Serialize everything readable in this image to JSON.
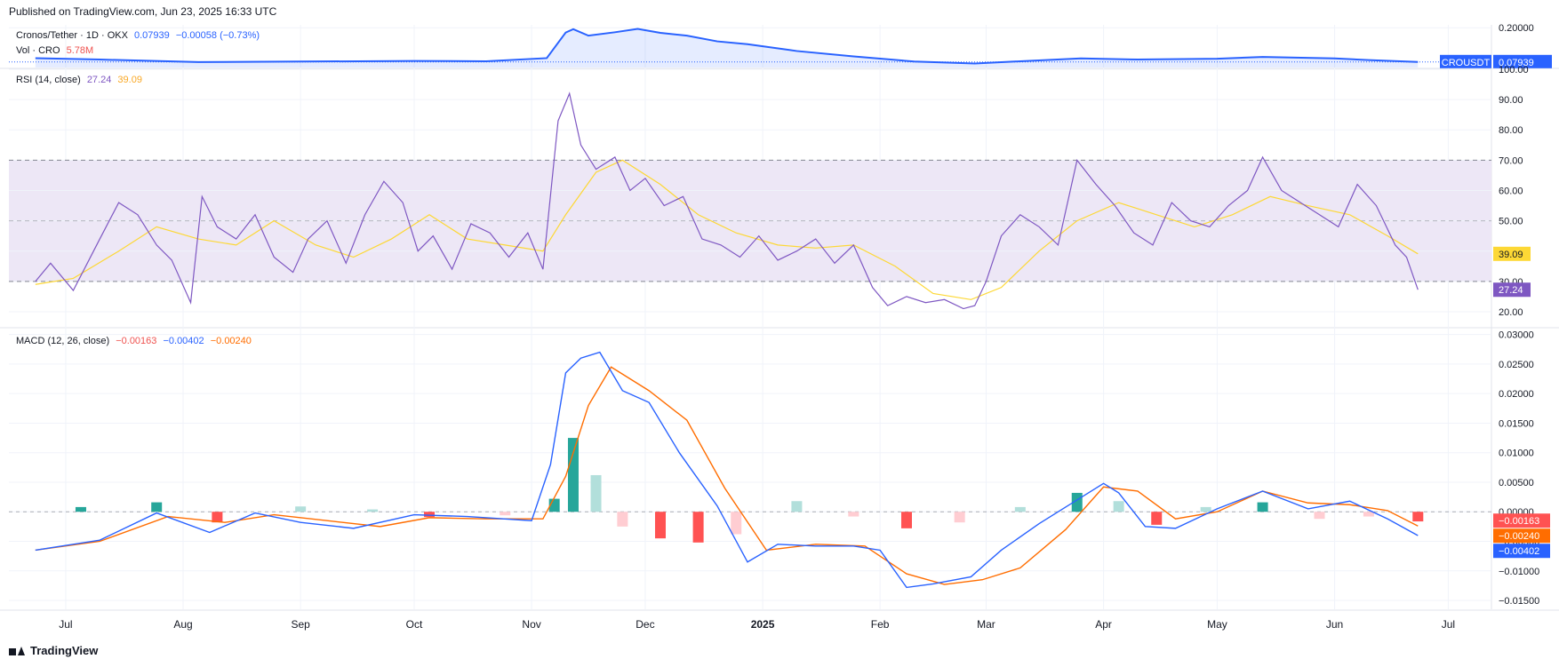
{
  "header": {
    "published": "Published on TradingView.com, Jun 23, 2025 16:33 UTC"
  },
  "footer": {
    "brand": "TradingView"
  },
  "colors": {
    "price": "#2962ff",
    "rsi": "#7e57c2",
    "rsi_ma": "#fdd835",
    "macd": "#2962ff",
    "signal": "#ff6d00",
    "hist_pos_strong": "#26a69a",
    "hist_pos_weak": "#b2dfdb",
    "hist_neg_strong": "#ff5252",
    "hist_neg_weak": "#ffcdd2",
    "rsi_band": "#ede7f6",
    "grid": "#f0f3fa"
  },
  "legend": {
    "symbol": "Cronos/Tether · 1D · OKX",
    "last": "0.07939",
    "change": "−0.00058 (−0.73%)",
    "vol_label": "Vol · CRO",
    "vol_value": "5.78M",
    "rsi_label": "RSI (14, close)",
    "rsi_value": "27.24",
    "rsi_ma_value": "39.09",
    "macd_label": "MACD (12, 26, close)",
    "macd_hist": "−0.00163",
    "macd_line": "−0.00402",
    "macd_signal": "−0.00240"
  },
  "badges": {
    "symbol": "CROUSDT",
    "price": "0.07939",
    "rsi": "27.24",
    "rsi_ma": "39.09",
    "hist": "−0.00163",
    "signal": "−0.00240",
    "macd": "−0.00402"
  },
  "chart_data": [
    {
      "type": "line",
      "panel": "price",
      "title": "Cronos/Tether · 1D · OKX",
      "yticks": [
        "0.20000"
      ],
      "ylim": [
        0.06,
        0.21
      ],
      "xlim": [
        "2025-06-23",
        "2025-06-23"
      ],
      "series": [
        {
          "name": "CROUSDT",
          "x": [
            "2024-06-23",
            "2024-07-10",
            "2024-08-05",
            "2024-09-01",
            "2024-10-01",
            "2024-10-20",
            "2024-11-05",
            "2024-11-10",
            "2024-11-12",
            "2024-11-16",
            "2024-11-23",
            "2024-11-29",
            "2024-12-05",
            "2024-12-12",
            "2024-12-20",
            "2024-12-28",
            "2025-01-10",
            "2025-01-25",
            "2025-02-10",
            "2025-02-26",
            "2025-03-10",
            "2025-03-26",
            "2025-04-10",
            "2025-05-01",
            "2025-05-13",
            "2025-06-01",
            "2025-06-10",
            "2025-06-23"
          ],
          "values": [
            0.093,
            0.088,
            0.079,
            0.081,
            0.083,
            0.082,
            0.093,
            0.183,
            0.195,
            0.172,
            0.184,
            0.196,
            0.182,
            0.172,
            0.152,
            0.142,
            0.118,
            0.099,
            0.081,
            0.074,
            0.082,
            0.092,
            0.088,
            0.091,
            0.097,
            0.092,
            0.086,
            0.0794
          ]
        }
      ]
    },
    {
      "type": "line",
      "panel": "rsi",
      "title": "RSI (14, close)",
      "yticks": [
        20,
        30,
        40,
        50,
        60,
        70,
        80,
        90,
        100
      ],
      "ylim": [
        15,
        100
      ],
      "band": [
        30,
        70
      ],
      "levels": [
        30,
        50,
        70
      ],
      "series": [
        {
          "name": "RSI",
          "x": [
            "2024-06-23",
            "2024-06-27",
            "2024-07-03",
            "2024-07-10",
            "2024-07-15",
            "2024-07-20",
            "2024-07-25",
            "2024-07-29",
            "2024-08-03",
            "2024-08-06",
            "2024-08-10",
            "2024-08-15",
            "2024-08-20",
            "2024-08-25",
            "2024-08-30",
            "2024-09-03",
            "2024-09-08",
            "2024-09-13",
            "2024-09-18",
            "2024-09-23",
            "2024-09-28",
            "2024-10-02",
            "2024-10-06",
            "2024-10-11",
            "2024-10-16",
            "2024-10-21",
            "2024-10-26",
            "2024-10-31",
            "2024-11-04",
            "2024-11-08",
            "2024-11-11",
            "2024-11-14",
            "2024-11-18",
            "2024-11-23",
            "2024-11-27",
            "2024-12-01",
            "2024-12-06",
            "2024-12-11",
            "2024-12-16",
            "2024-12-21",
            "2024-12-26",
            "2024-12-31",
            "2025-01-05",
            "2025-01-10",
            "2025-01-15",
            "2025-01-20",
            "2025-01-25",
            "2025-01-30",
            "2025-02-03",
            "2025-02-08",
            "2025-02-13",
            "2025-02-18",
            "2025-02-23",
            "2025-02-26",
            "2025-03-01",
            "2025-03-05",
            "2025-03-10",
            "2025-03-15",
            "2025-03-20",
            "2025-03-25",
            "2025-03-30",
            "2025-04-04",
            "2025-04-09",
            "2025-04-14",
            "2025-04-19",
            "2025-04-24",
            "2025-04-29",
            "2025-05-04",
            "2025-05-09",
            "2025-05-13",
            "2025-05-18",
            "2025-05-23",
            "2025-05-28",
            "2025-06-02",
            "2025-06-07",
            "2025-06-12",
            "2025-06-17",
            "2025-06-20",
            "2025-06-23"
          ],
          "values": [
            30,
            36,
            27,
            44,
            56,
            52,
            42,
            37,
            23,
            58,
            48,
            44,
            52,
            38,
            33,
            44,
            50,
            36,
            52,
            63,
            56,
            40,
            45,
            34,
            49,
            46,
            38,
            46,
            34,
            83,
            92,
            75,
            67,
            71,
            60,
            64,
            55,
            58,
            44,
            42,
            38,
            45,
            37,
            40,
            44,
            36,
            42,
            28,
            22,
            25,
            23,
            24,
            21,
            22,
            30,
            45,
            52,
            48,
            42,
            70,
            62,
            55,
            46,
            42,
            56,
            50,
            48,
            55,
            60,
            71,
            60,
            56,
            52,
            48,
            62,
            55,
            42,
            38,
            27.24
          ]
        },
        {
          "name": "RSI MA",
          "x": [
            "2024-06-23",
            "2024-07-03",
            "2024-07-15",
            "2024-07-25",
            "2024-08-05",
            "2024-08-15",
            "2024-08-25",
            "2024-09-05",
            "2024-09-15",
            "2024-09-25",
            "2024-10-05",
            "2024-10-15",
            "2024-10-25",
            "2024-11-04",
            "2024-11-10",
            "2024-11-18",
            "2024-11-25",
            "2024-12-05",
            "2024-12-15",
            "2024-12-25",
            "2025-01-05",
            "2025-01-15",
            "2025-01-25",
            "2025-02-05",
            "2025-02-15",
            "2025-02-25",
            "2025-03-05",
            "2025-03-15",
            "2025-03-25",
            "2025-04-05",
            "2025-04-15",
            "2025-04-25",
            "2025-05-05",
            "2025-05-15",
            "2025-05-25",
            "2025-06-05",
            "2025-06-15",
            "2025-06-23"
          ],
          "values": [
            29,
            31,
            40,
            48,
            44,
            42,
            50,
            42,
            38,
            44,
            52,
            44,
            42,
            40,
            52,
            66,
            70,
            62,
            52,
            46,
            42,
            41,
            42,
            35,
            26,
            24,
            28,
            40,
            50,
            56,
            52,
            48,
            52,
            58,
            55,
            52,
            45,
            39.09
          ]
        }
      ]
    },
    {
      "type": "line",
      "panel": "macd",
      "title": "MACD (12, 26, close)",
      "yticks": [
        -0.015,
        -0.01,
        -0.005,
        0,
        0.005,
        0.01,
        0.015,
        0.02,
        0.025,
        0.03
      ],
      "ylim": [
        -0.0165,
        0.031
      ],
      "series": [
        {
          "name": "MACD",
          "x": [
            "2024-06-23",
            "2024-07-10",
            "2024-07-25",
            "2024-08-08",
            "2024-08-20",
            "2024-09-01",
            "2024-09-15",
            "2024-10-01",
            "2024-10-15",
            "2024-11-01",
            "2024-11-06",
            "2024-11-10",
            "2024-11-14",
            "2024-11-19",
            "2024-11-25",
            "2024-12-02",
            "2024-12-10",
            "2024-12-20",
            "2024-12-28",
            "2025-01-05",
            "2025-01-15",
            "2025-01-25",
            "2025-02-01",
            "2025-02-08",
            "2025-02-15",
            "2025-02-25",
            "2025-03-05",
            "2025-03-15",
            "2025-03-25",
            "2025-04-01",
            "2025-04-05",
            "2025-04-12",
            "2025-04-20",
            "2025-05-01",
            "2025-05-13",
            "2025-05-25",
            "2025-06-05",
            "2025-06-15",
            "2025-06-23"
          ],
          "values": [
            -0.0065,
            -0.0048,
            -0.0002,
            -0.0035,
            -0.0002,
            -0.0018,
            -0.0028,
            -0.0005,
            -0.0008,
            -0.0015,
            0.008,
            0.0235,
            0.026,
            0.027,
            0.0205,
            0.0185,
            0.01,
            0.001,
            -0.0085,
            -0.0055,
            -0.0058,
            -0.0058,
            -0.0065,
            -0.0128,
            -0.0122,
            -0.011,
            -0.0065,
            -0.002,
            0.002,
            0.0048,
            0.0032,
            -0.0025,
            -0.0028,
            0.0005,
            0.0035,
            0.0005,
            0.0018,
            -0.0012,
            -0.00402
          ]
        },
        {
          "name": "Signal",
          "x": [
            "2024-06-23",
            "2024-07-10",
            "2024-07-28",
            "2024-08-12",
            "2024-08-25",
            "2024-09-08",
            "2024-09-22",
            "2024-10-05",
            "2024-10-20",
            "2024-11-04",
            "2024-11-10",
            "2024-11-16",
            "2024-11-22",
            "2024-12-02",
            "2024-12-12",
            "2024-12-22",
            "2025-01-02",
            "2025-01-15",
            "2025-01-28",
            "2025-02-08",
            "2025-02-18",
            "2025-02-28",
            "2025-03-10",
            "2025-03-22",
            "2025-04-01",
            "2025-04-10",
            "2025-04-20",
            "2025-05-01",
            "2025-05-13",
            "2025-05-25",
            "2025-06-05",
            "2025-06-15",
            "2025-06-23"
          ],
          "values": [
            -0.0065,
            -0.005,
            -0.0008,
            -0.0018,
            -0.0005,
            -0.0015,
            -0.0025,
            -0.001,
            -0.0012,
            -0.0012,
            0.006,
            0.018,
            0.0245,
            0.0205,
            0.0155,
            0.004,
            -0.0065,
            -0.0055,
            -0.0058,
            -0.0105,
            -0.0123,
            -0.0115,
            -0.0095,
            -0.003,
            0.0042,
            0.0035,
            -0.0012,
            0,
            0.0035,
            0.0015,
            0.0012,
            0.0002,
            -0.0024
          ]
        },
        {
          "name": "Histogram",
          "x": [
            "2024-07-05",
            "2024-07-25",
            "2024-08-10",
            "2024-09-01",
            "2024-09-20",
            "2024-10-05",
            "2024-10-25",
            "2024-11-07",
            "2024-11-12",
            "2024-11-18",
            "2024-11-25",
            "2024-12-05",
            "2024-12-15",
            "2024-12-25",
            "2025-01-10",
            "2025-01-25",
            "2025-02-08",
            "2025-02-22",
            "2025-03-10",
            "2025-03-25",
            "2025-04-05",
            "2025-04-15",
            "2025-04-28",
            "2025-05-13",
            "2025-05-28",
            "2025-06-10",
            "2025-06-23"
          ],
          "values": [
            0.0008,
            0.0016,
            -0.0018,
            0.0009,
            0.0004,
            -0.0009,
            -0.0006,
            0.0022,
            0.0125,
            0.0062,
            -0.0025,
            -0.0045,
            -0.0052,
            -0.0038,
            0.0018,
            -0.0008,
            -0.0028,
            -0.0018,
            0.0008,
            0.0032,
            0.0018,
            -0.0022,
            0.0008,
            0.0016,
            -0.0012,
            -0.0008,
            -0.00163
          ]
        }
      ]
    }
  ],
  "xaxis": {
    "ticks": [
      "Jul",
      "Aug",
      "Sep",
      "Oct",
      "Nov",
      "Dec",
      "2025",
      "Feb",
      "Mar",
      "Apr",
      "May",
      "Jun",
      "Jul"
    ]
  }
}
